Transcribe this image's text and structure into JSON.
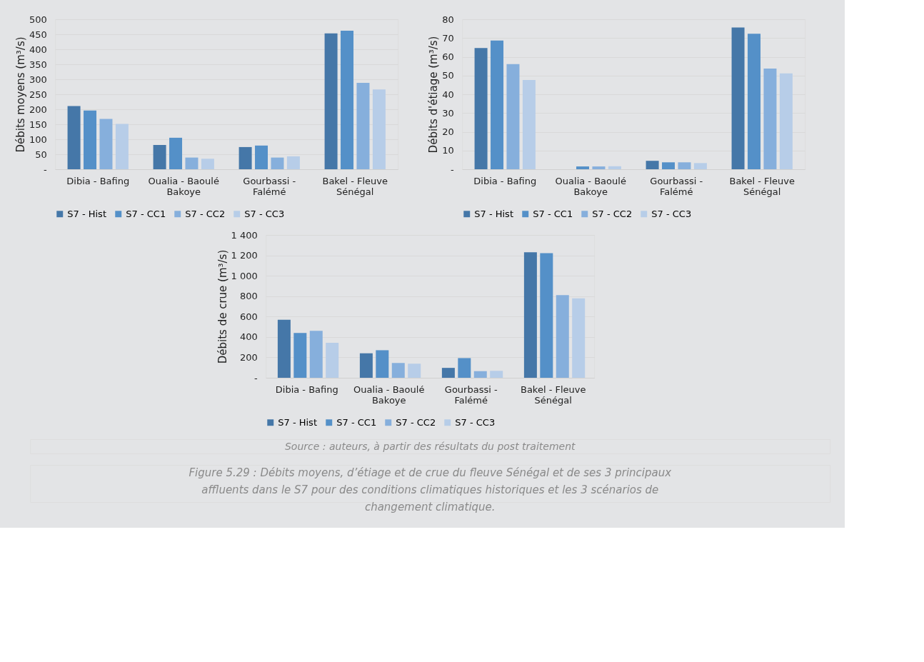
{
  "chart_data": [
    {
      "type": "bar",
      "ylabel": "Débits moyens (m³/s)",
      "categories": [
        "Dibia - Bafing",
        "Oualia - Baoulé\nBakoye",
        "Gourbassi -\nFalémé",
        "Bakel - Fleuve\nSénégal"
      ],
      "series": [
        {
          "name": "S7 - Hist",
          "color": "#4577a8",
          "values": [
            211,
            81,
            74,
            453
          ]
        },
        {
          "name": "S7 - CC1",
          "color": "#5490c8",
          "values": [
            196,
            105,
            79,
            462
          ]
        },
        {
          "name": "S7 - CC2",
          "color": "#86afdc",
          "values": [
            168,
            39,
            39,
            288
          ]
        },
        {
          "name": "S7 - CC3",
          "color": "#b7cde8",
          "values": [
            151,
            35,
            43,
            266
          ]
        }
      ],
      "ylim": [
        0,
        500
      ],
      "yticks": [
        {
          "value": 0,
          "label": "-"
        },
        50,
        100,
        150,
        200,
        250,
        300,
        350,
        400,
        450,
        500
      ],
      "grid": "y",
      "legend": "bottom"
    },
    {
      "type": "bar",
      "ylabel": "Débits d'étiage (m³/s)",
      "categories": [
        "Dibia - Bafing",
        "Oualia - Baoulé\nBakoye",
        "Gourbassi -\nFalémé",
        "Bakel - Fleuve\nSénégal"
      ],
      "series": [
        {
          "name": "S7 - Hist",
          "color": "#4577a8",
          "values": [
            64.7,
            0,
            4.5,
            75.6
          ]
        },
        {
          "name": "S7 - CC1",
          "color": "#5490c8",
          "values": [
            68.7,
            1.5,
            3.7,
            72.3
          ]
        },
        {
          "name": "S7 - CC2",
          "color": "#86afdc",
          "values": [
            56.1,
            1.5,
            3.7,
            53.7
          ]
        },
        {
          "name": "S7 - CC3",
          "color": "#b7cde8",
          "values": [
            47.6,
            1.6,
            3.3,
            51.1
          ]
        }
      ],
      "ylim": [
        0,
        80
      ],
      "yticks": [
        {
          "value": 0,
          "label": "-"
        },
        10,
        20,
        30,
        40,
        50,
        60,
        70,
        80
      ],
      "grid": "y",
      "legend": "bottom"
    },
    {
      "type": "bar",
      "ylabel": "Débits de crue (m³/s)",
      "categories": [
        "Dibia - Bafing",
        "Oualia - Baoulé\nBakoye",
        "Gourbassi -\nFalémé",
        "Bakel - Fleuve\nSénégal"
      ],
      "series": [
        {
          "name": "S7 - Hist",
          "color": "#4577a8",
          "values": [
            568,
            240,
            97,
            1230
          ]
        },
        {
          "name": "S7 - CC1",
          "color": "#5490c8",
          "values": [
            440,
            270,
            193,
            1222
          ]
        },
        {
          "name": "S7 - CC2",
          "color": "#86afdc",
          "values": [
            460,
            145,
            65,
            810
          ]
        },
        {
          "name": "S7 - CC3",
          "color": "#b7cde8",
          "values": [
            343,
            138,
            68,
            778
          ]
        }
      ],
      "ylim": [
        0,
        1400
      ],
      "yticks": [
        {
          "value": 0,
          "label": "-"
        },
        200,
        400,
        600,
        800,
        {
          "value": 1000,
          "label": "1 000"
        },
        {
          "value": 1200,
          "label": "1 200"
        },
        {
          "value": 1400,
          "label": "1 400"
        }
      ],
      "grid": "y",
      "legend": "bottom",
      "annotations": [
        "Source : auteurs, à partir des résultats du post traitement",
        "Figure 5.29 : Débits moyens, d’étiage et de crue du fleuve Sénégal et de ses 3 principaux affluents dans le S7 pour des conditions climatiques historiques et les 3 scénarios de changement climatique."
      ]
    }
  ]
}
